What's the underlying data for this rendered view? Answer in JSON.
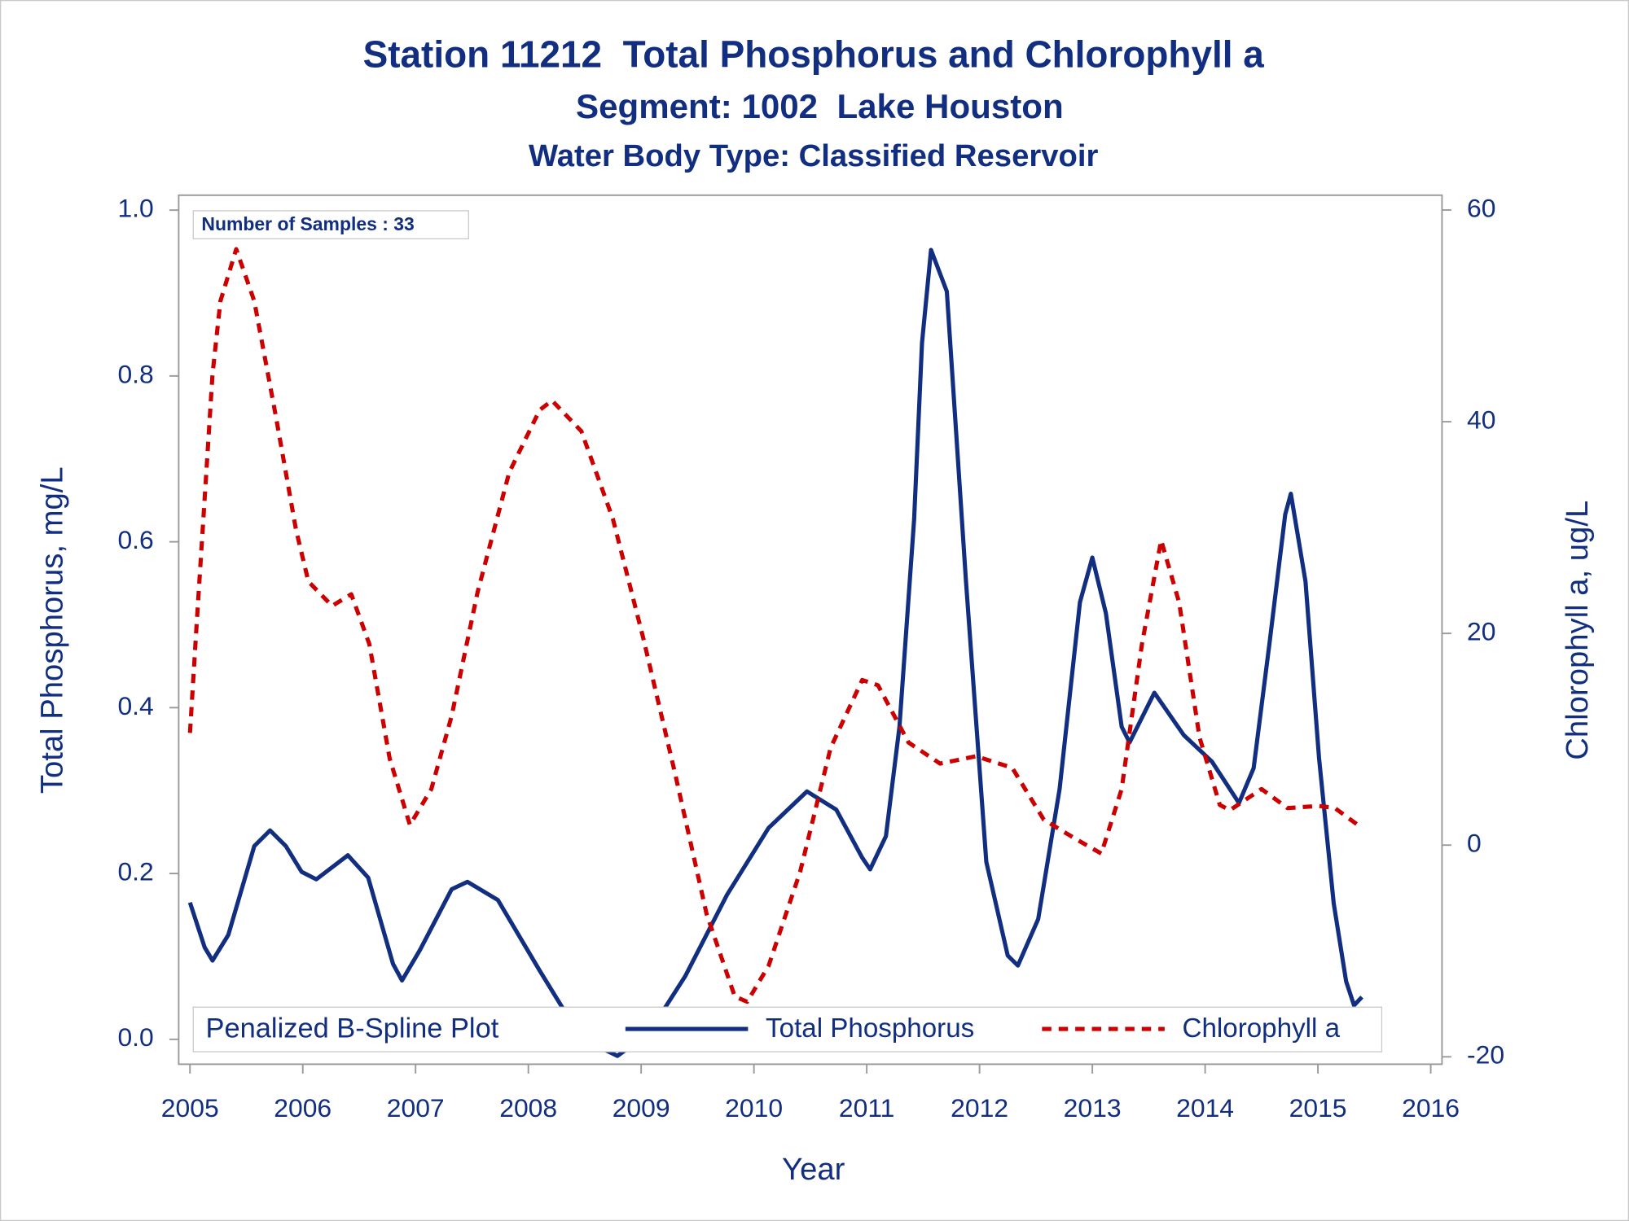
{
  "chart_data": {
    "type": "line",
    "title": "Station 11212  Total Phosphorus and Chlorophyll a",
    "subtitle": "Segment: 1002  Lake Houston",
    "subtitle2": "Water Body Type: Classified Reservoir",
    "annotation": "Number of Samples : 33",
    "legend_title": "Penalized B-Spline Plot",
    "legend_position": "bottom",
    "x_label": "Year",
    "y_label": "Total Phosphorus, mg/L",
    "y2_label": "Chlorophyll a, ug/L",
    "xlim": [
      2004.9,
      2016.1
    ],
    "xticks": [
      2005,
      2006,
      2007,
      2008,
      2009,
      2010,
      2011,
      2012,
      2013,
      2014,
      2015,
      2016
    ],
    "ylim": [
      -0.03,
      1.018
    ],
    "yticks": [
      {
        "value": 0,
        "label": "0.0"
      },
      0.2,
      0.4,
      0.6,
      0.8,
      {
        "value": 1,
        "label": "1.0"
      }
    ],
    "y2lim": [
      -20.7,
      61.4
    ],
    "y2ticks": [
      -20,
      0,
      20,
      40,
      60
    ],
    "series": [
      {
        "name": "Total Phosphorus",
        "color": "#112e80",
        "dash": "solid",
        "x": [
          2005.0,
          2005.13,
          2005.2,
          2005.34,
          2005.57,
          2005.71,
          2005.85,
          2005.99,
          2006.12,
          2006.4,
          2006.58,
          2006.8,
          2006.88,
          2007.04,
          2007.32,
          2007.46,
          2007.73,
          2008.1,
          2008.47,
          2008.79,
          2009.07,
          2009.39,
          2009.76,
          2010.13,
          2010.47,
          2010.73,
          2010.96,
          2011.03,
          2011.17,
          2011.29,
          2011.42,
          2011.49,
          2011.57,
          2011.71,
          2011.88,
          2012.06,
          2012.25,
          2012.34,
          2012.52,
          2012.71,
          2012.89,
          2013.0,
          2013.12,
          2013.26,
          2013.33,
          2013.55,
          2013.81,
          2014.06,
          2014.3,
          2014.43,
          2014.57,
          2014.71,
          2014.76,
          2014.89,
          2015.01,
          2015.14,
          2015.25,
          2015.32,
          2015.39
        ],
        "values": [
          0.165,
          0.111,
          0.095,
          0.126,
          0.233,
          0.252,
          0.233,
          0.202,
          0.193,
          0.222,
          0.195,
          0.091,
          0.071,
          0.108,
          0.181,
          0.19,
          0.168,
          0.083,
          0.001,
          -0.02,
          0.008,
          0.076,
          0.174,
          0.255,
          0.299,
          0.277,
          0.219,
          0.205,
          0.245,
          0.377,
          0.627,
          0.84,
          0.952,
          0.902,
          0.552,
          0.214,
          0.101,
          0.089,
          0.145,
          0.302,
          0.527,
          0.581,
          0.514,
          0.377,
          0.358,
          0.418,
          0.367,
          0.335,
          0.285,
          0.327,
          0.477,
          0.633,
          0.658,
          0.552,
          0.339,
          0.164,
          0.07,
          0.041,
          0.051
        ]
      },
      {
        "name": "Chlorophyll a",
        "color": "#cc0000",
        "dash": "dashed",
        "axis": "y2",
        "x": [
          2005.0,
          2005.06,
          2005.13,
          2005.2,
          2005.27,
          2005.41,
          2005.57,
          2005.76,
          2005.94,
          2006.05,
          2006.26,
          2006.43,
          2006.59,
          2006.77,
          2006.95,
          2007.14,
          2007.32,
          2007.55,
          2007.83,
          2008.1,
          2008.21,
          2008.47,
          2008.75,
          2009.02,
          2009.3,
          2009.58,
          2009.83,
          2009.94,
          2010.13,
          2010.41,
          2010.68,
          2010.96,
          2011.1,
          2011.37,
          2011.65,
          2011.97,
          2012.29,
          2012.57,
          2012.85,
          2013.08,
          2013.26,
          2013.44,
          2013.61,
          2013.77,
          2013.95,
          2014.13,
          2014.22,
          2014.5,
          2014.73,
          2015.01,
          2015.15,
          2015.38
        ],
        "values": [
          10.6,
          21.0,
          32.7,
          44.5,
          51.4,
          56.3,
          51.4,
          40.6,
          29.8,
          24.9,
          22.6,
          23.7,
          19.0,
          8.2,
          1.9,
          5.3,
          12.2,
          23.9,
          35.2,
          41.1,
          42.0,
          39.1,
          30.8,
          19.5,
          6.8,
          -6.5,
          -14.3,
          -14.8,
          -11.4,
          -2.5,
          9.2,
          15.6,
          15.1,
          9.7,
          7.7,
          8.4,
          7.3,
          2.4,
          0.6,
          -0.8,
          5.3,
          19.0,
          28.8,
          22.9,
          10.2,
          3.8,
          3.3,
          5.3,
          3.5,
          3.7,
          3.5,
          1.7
        ]
      }
    ]
  }
}
